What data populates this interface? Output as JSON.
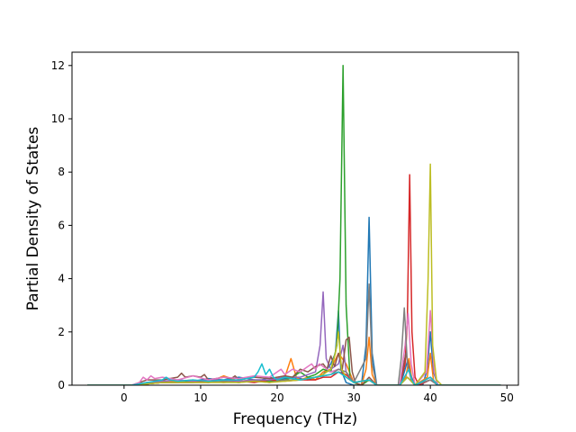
{
  "chart_data": {
    "type": "line",
    "title": "",
    "xlabel": "Frequency (THz)",
    "ylabel": "Partial Density of States",
    "xlim": [
      -6.8,
      51.5
    ],
    "ylim": [
      0,
      12.5
    ],
    "xticks": [
      0,
      10,
      20,
      30,
      40,
      50
    ],
    "yticks": [
      0,
      2,
      4,
      6,
      8,
      10,
      12
    ],
    "grid": false,
    "legend": "none",
    "series": [
      {
        "color": "#1f77b4",
        "x": [
          -4.8,
          1,
          3,
          5,
          7,
          9,
          11,
          13,
          15,
          17,
          18,
          19,
          20,
          22,
          24,
          25,
          26,
          27,
          27.6,
          28,
          28.3,
          29,
          30,
          31,
          31.6,
          32,
          32.4,
          33,
          34,
          36,
          36.5,
          37,
          37.5,
          38,
          39,
          39.6,
          40,
          40.4,
          41,
          45,
          49.2
        ],
        "y": [
          0,
          0,
          0.1,
          0.15,
          0.2,
          0.15,
          0.25,
          0.2,
          0.3,
          0.2,
          0.2,
          0.3,
          0.2,
          0.3,
          0.2,
          0.3,
          0.4,
          0.8,
          1.2,
          2.8,
          0.6,
          0.1,
          0,
          0,
          1.5,
          6.3,
          1.2,
          0,
          0,
          0,
          0.4,
          0.9,
          0.3,
          0,
          0,
          0.6,
          2.0,
          0.5,
          0,
          0,
          0
        ]
      },
      {
        "color": "#ff7f0e",
        "x": [
          -4.8,
          1,
          3,
          5,
          7,
          9,
          11,
          13,
          15,
          17,
          19,
          20,
          21,
          21.8,
          22.5,
          23,
          24,
          25,
          26,
          27,
          28,
          29,
          30,
          31,
          31.6,
          32,
          32.4,
          33,
          36,
          36.8,
          37.2,
          37.6,
          38,
          39.6,
          40,
          40.4,
          41,
          45,
          49.2
        ],
        "y": [
          0,
          0,
          0.05,
          0.1,
          0.15,
          0.2,
          0.1,
          0.35,
          0.15,
          0.2,
          0.1,
          0.2,
          0.3,
          1.0,
          0.3,
          0.2,
          0.3,
          0.2,
          0.5,
          0.6,
          1.2,
          0.8,
          0.1,
          0,
          0.6,
          1.8,
          0.4,
          0,
          0,
          0.3,
          1.0,
          0.2,
          0,
          0.3,
          1.2,
          0.2,
          0,
          0,
          0
        ]
      },
      {
        "color": "#2ca02c",
        "x": [
          -4.8,
          1,
          3,
          5,
          7,
          9,
          11,
          13,
          15,
          17,
          19,
          21,
          22,
          23,
          24,
          25,
          26,
          27,
          27.8,
          28.2,
          28.6,
          29.0,
          29.5,
          30,
          31,
          32,
          33,
          36,
          37,
          38,
          40,
          41,
          45,
          49.2
        ],
        "y": [
          0,
          0,
          0.05,
          0.1,
          0.1,
          0.15,
          0.1,
          0.15,
          0.1,
          0.2,
          0.15,
          0.2,
          0.3,
          0.5,
          0.3,
          0.4,
          0.6,
          0.5,
          1.5,
          4.0,
          12.0,
          3.0,
          0.3,
          0.1,
          0,
          0.2,
          0,
          0,
          0.3,
          0,
          0.2,
          0,
          0,
          0
        ]
      },
      {
        "color": "#d62728",
        "x": [
          -4.8,
          1,
          3,
          5,
          7,
          9,
          11,
          13,
          15,
          17,
          19,
          21,
          23,
          25,
          26,
          27,
          28,
          29,
          30,
          32,
          33,
          36,
          36.7,
          37.0,
          37.3,
          37.6,
          38.0,
          38.5,
          40,
          41,
          45,
          49.2
        ],
        "y": [
          0,
          0,
          0.05,
          0.1,
          0.1,
          0.1,
          0.15,
          0.1,
          0.15,
          0.1,
          0.2,
          0.15,
          0.2,
          0.2,
          0.3,
          0.3,
          0.5,
          0.4,
          0.1,
          0.2,
          0,
          0,
          0.8,
          2.5,
          7.9,
          2.0,
          0.3,
          0,
          0.2,
          0,
          0,
          0
        ]
      },
      {
        "color": "#9467bd",
        "x": [
          -4.8,
          1,
          3,
          5,
          7,
          9,
          11,
          13,
          15,
          17,
          19,
          21,
          23,
          24,
          25,
          25.6,
          26.0,
          26.4,
          27,
          28,
          28.6,
          29,
          30,
          32,
          33,
          36,
          37,
          38,
          40,
          41,
          45,
          49.2
        ],
        "y": [
          0,
          0,
          0.1,
          0.15,
          0.2,
          0.15,
          0.2,
          0.2,
          0.15,
          0.2,
          0.2,
          0.3,
          0.3,
          0.4,
          0.5,
          1.5,
          3.5,
          1.0,
          0.6,
          0.8,
          1.5,
          0.5,
          0.1,
          0.2,
          0,
          0,
          0.3,
          0,
          0.2,
          0,
          0,
          0
        ]
      },
      {
        "color": "#8c564b",
        "x": [
          -4.8,
          1,
          3,
          5,
          7,
          7.5,
          8,
          9,
          10,
          10.5,
          11,
          13,
          14,
          14.5,
          15,
          17,
          19,
          21,
          22,
          23,
          24,
          25,
          26,
          26.5,
          27,
          27.5,
          28,
          28.5,
          29,
          29.4,
          29.8,
          30.2,
          31,
          32,
          33,
          36,
          36.8,
          37.4,
          38,
          40,
          41,
          45,
          49.2
        ],
        "y": [
          0,
          0,
          0.2,
          0.2,
          0.3,
          0.45,
          0.3,
          0.35,
          0.3,
          0.4,
          0.2,
          0.3,
          0.25,
          0.35,
          0.2,
          0.3,
          0.25,
          0.35,
          0.3,
          0.6,
          0.5,
          0.7,
          0.8,
          0.6,
          1.1,
          0.7,
          1.2,
          0.6,
          1.7,
          1.8,
          0.5,
          0.1,
          0,
          0.3,
          0,
          0,
          1.2,
          0.4,
          0,
          0.3,
          0,
          0,
          0
        ]
      },
      {
        "color": "#e377c2",
        "x": [
          -4.8,
          1,
          2,
          2.5,
          3,
          3.5,
          4,
          5,
          7,
          9,
          11,
          13,
          15,
          17,
          19,
          20,
          20.5,
          21,
          22,
          23,
          24,
          24.5,
          25,
          25.5,
          26,
          27,
          28,
          29,
          30,
          32,
          33,
          36,
          36.7,
          37.1,
          37.5,
          38,
          39.5,
          40,
          40.5,
          41,
          45,
          49.2
        ],
        "y": [
          0,
          0,
          0.1,
          0.3,
          0.2,
          0.35,
          0.25,
          0.3,
          0.2,
          0.35,
          0.2,
          0.3,
          0.25,
          0.35,
          0.3,
          0.5,
          0.6,
          0.4,
          0.6,
          0.5,
          0.7,
          0.8,
          0.6,
          0.8,
          0.7,
          0.5,
          0.6,
          0.5,
          0.1,
          0.2,
          0,
          0,
          1.5,
          2.7,
          0.8,
          0,
          0.5,
          2.8,
          0.5,
          0,
          0,
          0
        ]
      },
      {
        "color": "#7f7f7f",
        "x": [
          -4.8,
          1,
          3,
          5,
          7,
          9,
          11,
          13,
          15,
          17,
          19,
          21,
          23,
          25,
          27,
          28,
          29,
          30,
          31.6,
          32,
          32.4,
          33,
          35.8,
          36.2,
          36.6,
          37.0,
          37.5,
          38,
          40,
          41,
          45,
          49.2
        ],
        "y": [
          0,
          0,
          0.05,
          0.1,
          0.1,
          0.1,
          0.1,
          0.15,
          0.1,
          0.15,
          0.1,
          0.2,
          0.2,
          0.3,
          0.4,
          0.6,
          0.5,
          0.1,
          1.0,
          3.8,
          0.8,
          0,
          0,
          1.0,
          2.9,
          0.8,
          0.2,
          0,
          0.2,
          0,
          0,
          0
        ]
      },
      {
        "color": "#bcbd22",
        "x": [
          -4.8,
          1,
          3,
          5,
          7,
          9,
          11,
          13,
          15,
          17,
          19,
          21,
          23,
          25,
          26,
          27,
          27.6,
          28.0,
          28.4,
          29,
          30,
          32,
          33,
          36,
          37,
          38,
          39.3,
          39.7,
          40.0,
          40.3,
          40.8,
          41.5,
          45,
          49.2
        ],
        "y": [
          0,
          0,
          0.05,
          0.1,
          0.1,
          0.1,
          0.1,
          0.1,
          0.1,
          0.15,
          0.1,
          0.15,
          0.2,
          0.3,
          0.4,
          0.6,
          1.2,
          2.0,
          0.6,
          0.3,
          0.1,
          0.2,
          0,
          0,
          0.3,
          0,
          0.5,
          3.9,
          8.3,
          1.5,
          0.2,
          0,
          0,
          0
        ]
      },
      {
        "color": "#17becf",
        "x": [
          -4.8,
          1,
          3,
          4,
          5,
          5.5,
          6,
          7,
          9,
          11,
          13,
          15,
          16,
          17,
          17.5,
          18,
          18.5,
          19,
          19.5,
          20,
          21,
          23,
          25,
          27,
          28,
          29,
          30,
          32,
          33,
          36,
          36.8,
          37.2,
          37.6,
          38,
          40,
          41,
          45,
          49.2
        ],
        "y": [
          0,
          0,
          0.1,
          0.15,
          0.2,
          0.3,
          0.2,
          0.15,
          0.2,
          0.15,
          0.2,
          0.2,
          0.25,
          0.3,
          0.5,
          0.8,
          0.4,
          0.6,
          0.3,
          0.2,
          0.3,
          0.2,
          0.3,
          0.4,
          0.5,
          0.3,
          0.1,
          0.2,
          0,
          0,
          0.4,
          0.6,
          0.2,
          0,
          0.3,
          0,
          0,
          0
        ]
      }
    ]
  }
}
